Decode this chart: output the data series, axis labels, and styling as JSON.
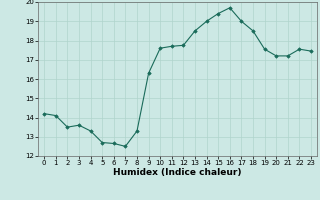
{
  "x": [
    0,
    1,
    2,
    3,
    4,
    5,
    6,
    7,
    8,
    9,
    10,
    11,
    12,
    13,
    14,
    15,
    16,
    17,
    18,
    19,
    20,
    21,
    22,
    23
  ],
  "y": [
    14.2,
    14.1,
    13.5,
    13.6,
    13.3,
    12.7,
    12.65,
    12.5,
    13.3,
    16.3,
    17.6,
    17.7,
    17.75,
    18.5,
    19.0,
    19.4,
    19.7,
    19.0,
    18.5,
    17.55,
    17.2,
    17.2,
    17.55,
    17.45
  ],
  "xlabel": "Humidex (Indice chaleur)",
  "ylim": [
    12,
    20
  ],
  "xlim": [
    -0.5,
    23.5
  ],
  "yticks": [
    12,
    13,
    14,
    15,
    16,
    17,
    18,
    19,
    20
  ],
  "xticks": [
    0,
    1,
    2,
    3,
    4,
    5,
    6,
    7,
    8,
    9,
    10,
    11,
    12,
    13,
    14,
    15,
    16,
    17,
    18,
    19,
    20,
    21,
    22,
    23
  ],
  "xtick_labels": [
    "0",
    "1",
    "2",
    "3",
    "4",
    "5",
    "6",
    "7",
    "8",
    "9",
    "10",
    "11",
    "12",
    "13",
    "14",
    "15",
    "16",
    "17",
    "18",
    "19",
    "20",
    "21",
    "22",
    "23"
  ],
  "line_color": "#1a6b5a",
  "marker": "D",
  "marker_size": 1.8,
  "bg_color": "#cce8e4",
  "grid_color": "#b0d4cc",
  "xlabel_fontsize": 6.5,
  "tick_fontsize": 5.0
}
